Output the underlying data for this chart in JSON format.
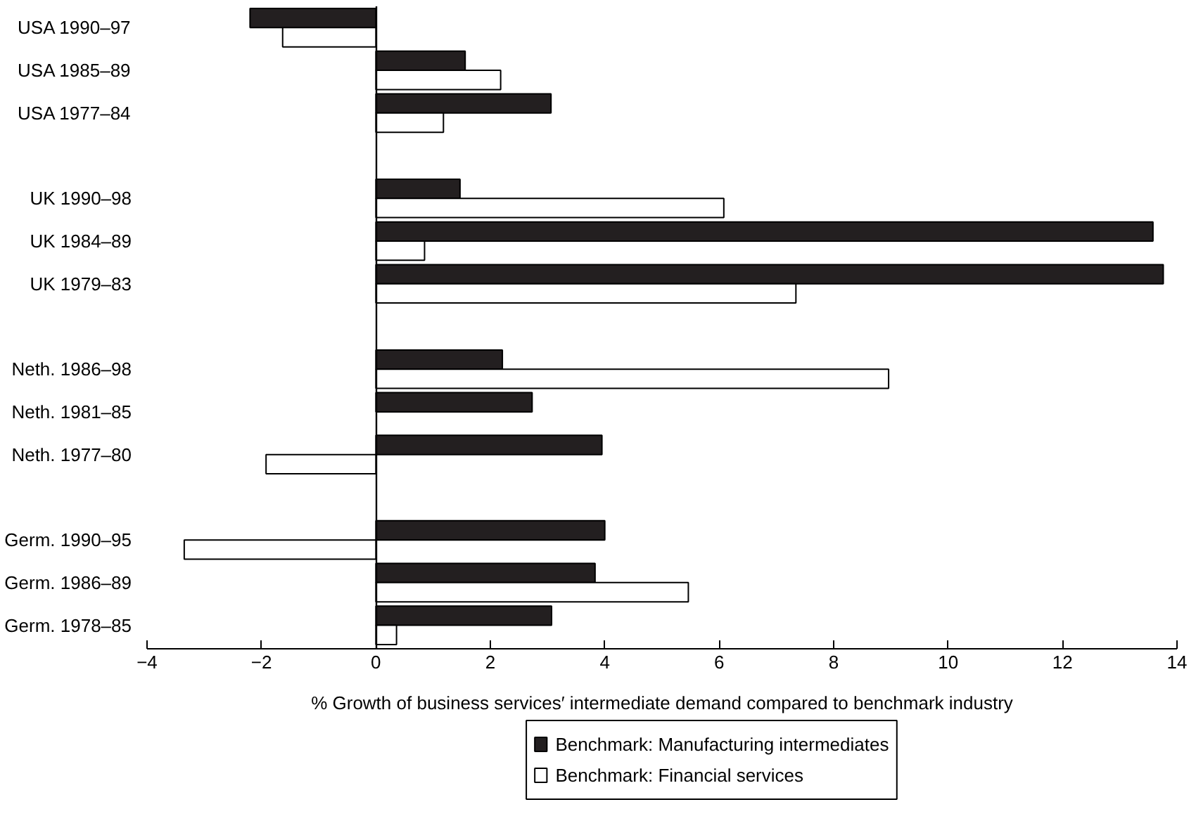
{
  "chart_data": {
    "type": "bar",
    "orientation": "horizontal",
    "xlabel": "% Growth of business services′ intermediate demand compared to benchmark industry",
    "categories": [
      "USA 1990–97",
      "USA 1985–89",
      "USA 1977–84",
      null,
      "UK 1990–98",
      "UK 1984–89",
      "UK 1979–83",
      null,
      "Neth. 1986–98",
      "Neth. 1981–85",
      "Neth. 1977–80",
      null,
      "Germ. 1990–95",
      "Germ. 1986–89",
      "Germ. 1978–85"
    ],
    "series": [
      {
        "name": "Benchmark: Manufacturing intermediates",
        "color": "#231f20",
        "values": [
          -2.2,
          1.56,
          3.06,
          null,
          1.47,
          13.58,
          13.76,
          null,
          2.21,
          2.73,
          3.95,
          null,
          4.0,
          3.83,
          3.07
        ]
      },
      {
        "name": "Benchmark: Financial services",
        "color": "#ffffff",
        "values": [
          -1.63,
          2.18,
          1.18,
          null,
          6.08,
          0.85,
          7.34,
          null,
          8.96,
          null,
          -1.92,
          null,
          -3.35,
          5.46,
          0.36
        ]
      }
    ],
    "xlim": [
      -4,
      14
    ],
    "xticks": [
      {
        "value": -4,
        "label": "−4"
      },
      {
        "value": -2,
        "label": "−2"
      },
      0,
      2,
      4,
      6,
      8,
      10,
      12,
      14
    ],
    "legend": "bottom"
  }
}
